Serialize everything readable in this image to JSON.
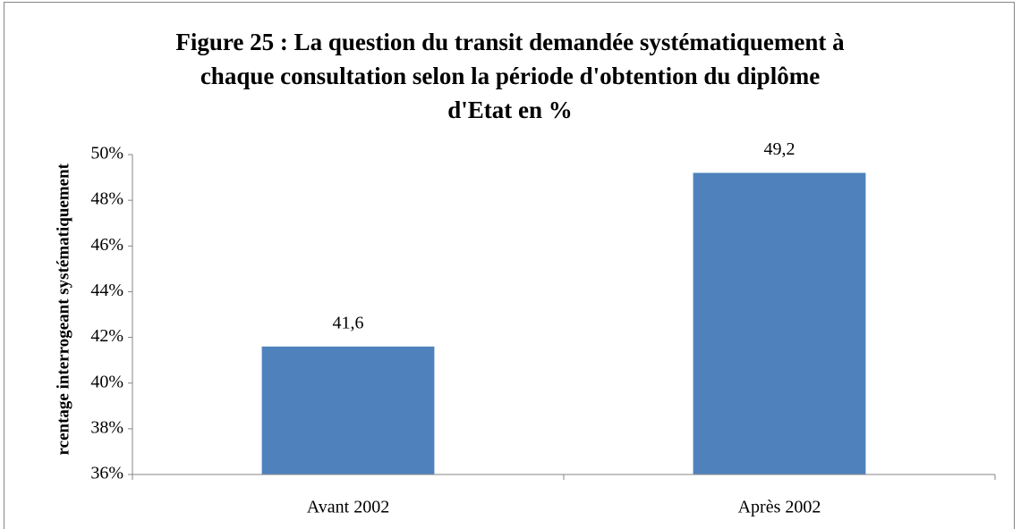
{
  "chart_data": {
    "type": "bar",
    "title_lines": [
      "Figure 25 : La question du transit demandée systématiquement à",
      "chaque consultation selon la période d'obtention du diplôme",
      "d'Etat en %"
    ],
    "y_label": "rcentage interrogeant systématiquement",
    "categories": [
      "Avant 2002",
      "Après 2002"
    ],
    "values": [
      41.6,
      49.2
    ],
    "value_labels": [
      "41,6",
      "49,2"
    ],
    "color": "#4f81bd",
    "ylim": [
      36,
      50
    ],
    "yticks": [
      {
        "value": 36,
        "label": "36%"
      },
      {
        "value": 38,
        "label": "38%"
      },
      {
        "value": 40,
        "label": "40%"
      },
      {
        "value": 42,
        "label": "42%"
      },
      {
        "value": 44,
        "label": "44%"
      },
      {
        "value": 46,
        "label": "46%"
      },
      {
        "value": 48,
        "label": "48%"
      },
      {
        "value": 50,
        "label": "50%"
      }
    ],
    "grid": false
  }
}
